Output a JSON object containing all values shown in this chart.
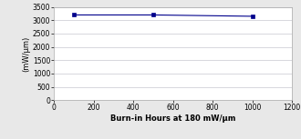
{
  "x": [
    100,
    500,
    1000
  ],
  "y": [
    3200,
    3200,
    3150
  ],
  "line_color": "#00008B",
  "marker": "s",
  "marker_color": "#00008B",
  "marker_size": 2.5,
  "line_width": 0.8,
  "xlabel": "Burn-in Hours at 180 mW/μm",
  "ylabel": "(mW/μm)",
  "xlim": [
    0,
    1200
  ],
  "ylim": [
    0,
    3500
  ],
  "xticks": [
    0,
    200,
    400,
    600,
    800,
    1000,
    1200
  ],
  "yticks": [
    0,
    500,
    1000,
    1500,
    2000,
    2500,
    3000,
    3500
  ],
  "figure_bg_color": "#e8e8e8",
  "plot_bg_color": "#ffffff",
  "grid_color": "#c8c8d0",
  "xlabel_fontsize": 6,
  "ylabel_fontsize": 6,
  "tick_fontsize": 5.5,
  "xlabel_bold": true
}
